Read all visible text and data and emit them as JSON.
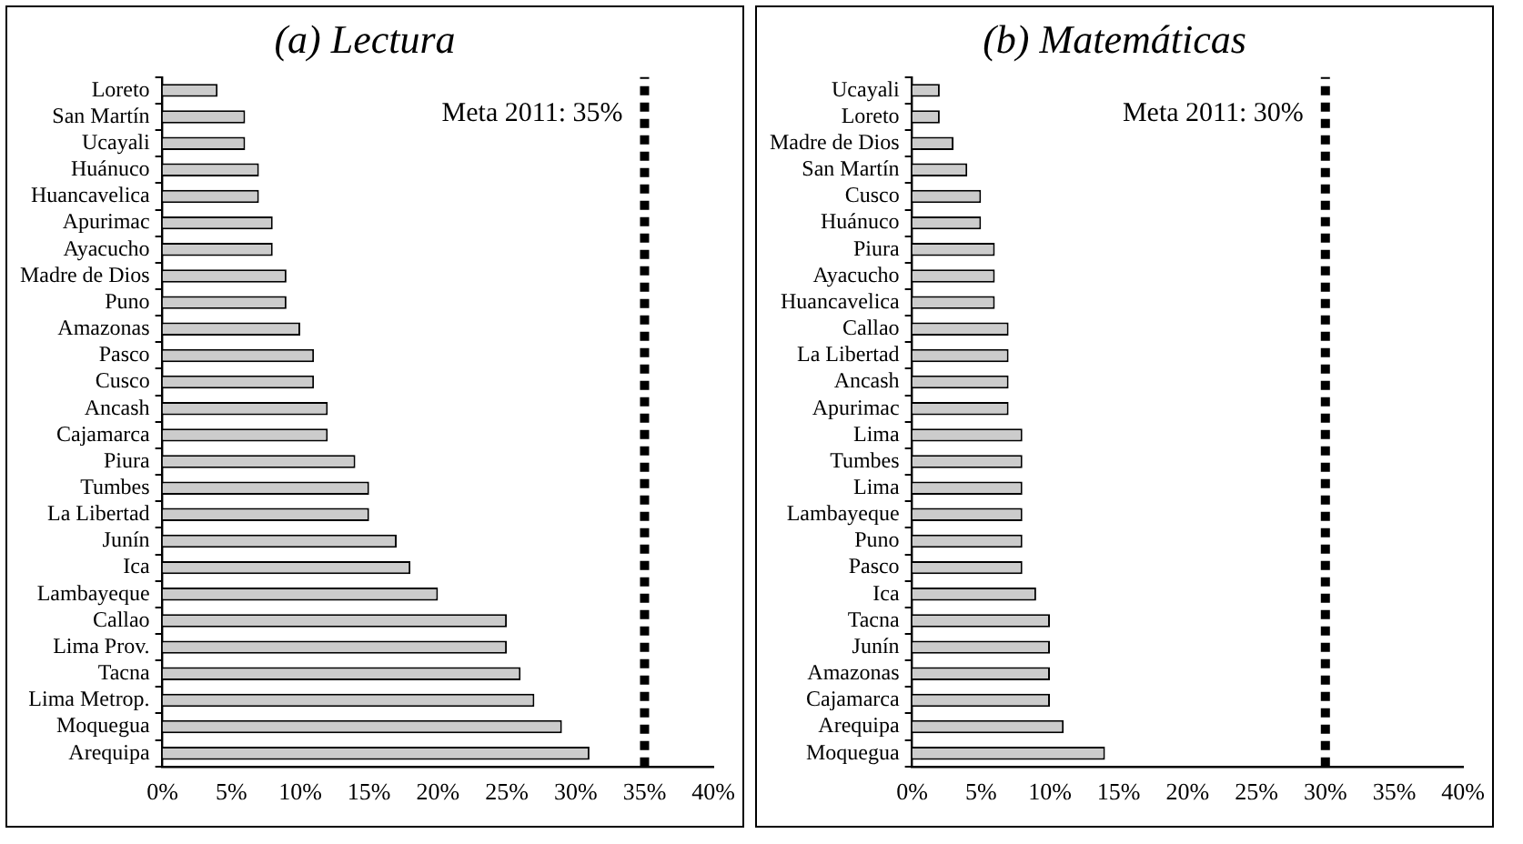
{
  "chart_data": [
    {
      "type": "bar",
      "orientation": "horizontal",
      "title": "(a) Lectura",
      "categories": [
        "Loreto",
        "San Martín",
        "Ucayali",
        "Huánuco",
        "Huancavelica",
        "Apurimac",
        "Ayacucho",
        "Madre de Dios",
        "Puno",
        "Amazonas",
        "Pasco",
        "Cusco",
        "Ancash",
        "Cajamarca",
        "Piura",
        "Tumbes",
        "La Libertad",
        "Junín",
        "Ica",
        "Lambayeque",
        "Callao",
        "Lima Prov.",
        "Tacna",
        "Lima Metrop.",
        "Moquegua",
        "Arequipa"
      ],
      "values": [
        4,
        6,
        6,
        7,
        7,
        8,
        8,
        9,
        9,
        10,
        11,
        11,
        12,
        12,
        14,
        15,
        15,
        17,
        18,
        20,
        25,
        25,
        26,
        27,
        29,
        31
      ],
      "color": "#cccccc",
      "xlim": [
        0,
        40
      ],
      "xticks": [
        {
          "value": 0,
          "label": "0%"
        },
        {
          "value": 5,
          "label": "5%"
        },
        {
          "value": 10,
          "label": "10%"
        },
        {
          "value": 15,
          "label": "15%"
        },
        {
          "value": 20,
          "label": "20%"
        },
        {
          "value": 25,
          "label": "25%"
        },
        {
          "value": 30,
          "label": "30%"
        },
        {
          "value": 35,
          "label": "35%"
        },
        {
          "value": 40,
          "label": "40%"
        }
      ],
      "ref_lines": [
        {
          "axis": "x",
          "value": 35,
          "label": "Meta 2011: 35%",
          "color": "#000000",
          "line_style": "dashed"
        }
      ],
      "grid": false,
      "legend": false
    },
    {
      "type": "bar",
      "orientation": "horizontal",
      "title": "(b) Matemáticas",
      "categories": [
        "Ucayali",
        "Loreto",
        "Madre de Dios",
        "San Martín",
        "Cusco",
        "Huánuco",
        "Piura",
        "Ayacucho",
        "Huancavelica",
        "Callao",
        "La Libertad",
        "Ancash",
        "Apurimac",
        "Lima",
        "Tumbes",
        "Lima",
        "Lambayeque",
        "Puno",
        "Pasco",
        "Ica",
        "Tacna",
        "Junín",
        "Amazonas",
        "Cajamarca",
        "Arequipa",
        "Moquegua"
      ],
      "values": [
        2,
        2,
        3,
        4,
        5,
        5,
        6,
        6,
        6,
        7,
        7,
        7,
        7,
        8,
        8,
        8,
        8,
        8,
        8,
        9,
        10,
        10,
        10,
        10,
        11,
        14
      ],
      "color": "#cccccc",
      "xlim": [
        0,
        40
      ],
      "xticks": [
        {
          "value": 0,
          "label": "0%"
        },
        {
          "value": 5,
          "label": "5%"
        },
        {
          "value": 10,
          "label": "10%"
        },
        {
          "value": 15,
          "label": "15%"
        },
        {
          "value": 20,
          "label": "20%"
        },
        {
          "value": 25,
          "label": "25%"
        },
        {
          "value": 30,
          "label": "30%"
        },
        {
          "value": 35,
          "label": "35%"
        },
        {
          "value": 40,
          "label": "40%"
        }
      ],
      "ref_lines": [
        {
          "axis": "x",
          "value": 30,
          "label": "Meta 2011: 30%",
          "color": "#000000",
          "line_style": "dashed"
        }
      ],
      "grid": false,
      "legend": false
    }
  ]
}
